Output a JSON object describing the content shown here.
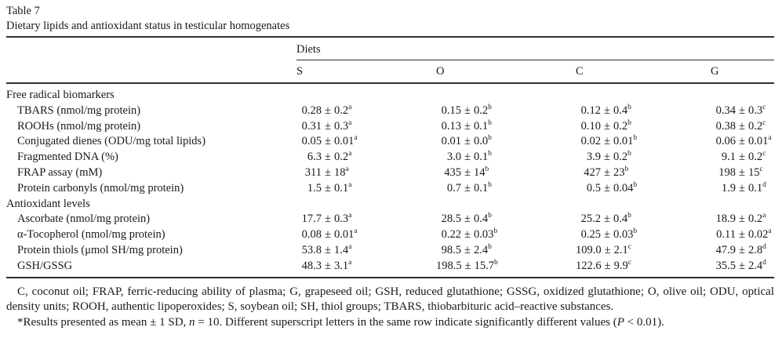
{
  "page": {
    "label": "Table 7",
    "caption": "Dietary lipids and antioxidant status in testicular homogenates"
  },
  "table": {
    "group_header": "Diets",
    "plus_minus": "±",
    "columns": [
      "S",
      "O",
      "C",
      "G"
    ],
    "sections": [
      {
        "title": "Free radical biomarkers",
        "rows": [
          {
            "label": "TBARS (nmol/mg protein)",
            "values": [
              [
                "0.28",
                "0.2",
                "a"
              ],
              [
                "0.15",
                "0.2",
                "b"
              ],
              [
                "0.12",
                "0.4",
                "b"
              ],
              [
                "0.34",
                "0.3",
                "c"
              ]
            ]
          },
          {
            "label": "ROOHs (nmol/mg protein)",
            "values": [
              [
                "0.31",
                "0.3",
                "a"
              ],
              [
                "0.13",
                "0.1",
                "b"
              ],
              [
                "0.10",
                "0.2",
                "b"
              ],
              [
                "0.38",
                "0.2",
                "c"
              ]
            ]
          },
          {
            "label": "Conjugated dienes (ODU/mg total lipids)",
            "values": [
              [
                "0.05",
                "0.01",
                "a"
              ],
              [
                "0.01",
                "0.0",
                "b"
              ],
              [
                "0.02",
                "0.01",
                "b"
              ],
              [
                "0.06",
                "0.01",
                "a"
              ]
            ]
          },
          {
            "label": "Fragmented DNA (%)",
            "values": [
              [
                "6.3",
                "0.2",
                "a"
              ],
              [
                "3.0",
                "0.1",
                "b"
              ],
              [
                "3.9",
                "0.2",
                "b"
              ],
              [
                "9.1",
                "0.2",
                "c"
              ]
            ]
          },
          {
            "label": "FRAP assay (mM)",
            "values": [
              [
                "311",
                "18",
                "a"
              ],
              [
                "435",
                "14",
                "b"
              ],
              [
                "427",
                "23",
                "b"
              ],
              [
                "198",
                "15",
                "c"
              ]
            ]
          },
          {
            "label": "Protein carbonyls (nmol/mg protein)",
            "values": [
              [
                "1.5",
                "0.1",
                "a"
              ],
              [
                "0.7",
                "0.1",
                "b"
              ],
              [
                "0.5",
                "0.04",
                "b"
              ],
              [
                "1.9",
                "0.1",
                "d"
              ]
            ]
          }
        ]
      },
      {
        "title": "Antioxidant levels",
        "rows": [
          {
            "label": "Ascorbate (nmol/mg protein)",
            "values": [
              [
                "17.7",
                "0.3",
                "a"
              ],
              [
                "28.5",
                "0.4",
                "b"
              ],
              [
                "25.2",
                "0.4",
                "b"
              ],
              [
                "18.9",
                "0.2",
                "a"
              ]
            ]
          },
          {
            "label": "α-Tocopherol (nmol/mg protein)",
            "values": [
              [
                "0.08",
                "0.01",
                "a"
              ],
              [
                "0.22",
                "0.03",
                "b"
              ],
              [
                "0.25",
                "0.03",
                "b"
              ],
              [
                "0.11",
                "0.02",
                "a"
              ]
            ]
          },
          {
            "label": "Protein thiols (μmol SH/mg protein)",
            "values": [
              [
                "53.8",
                "1.4",
                "a"
              ],
              [
                "98.5",
                "2.4",
                "b"
              ],
              [
                "109.0",
                "2.1",
                "c"
              ],
              [
                "47.9",
                "2.8",
                "d"
              ]
            ]
          },
          {
            "label": "GSH/GSSG",
            "values": [
              [
                "48.3",
                "3.1",
                "a"
              ],
              [
                "198.5",
                "15.7",
                "b"
              ],
              [
                "122.6",
                "9.9",
                "c"
              ],
              [
                "35.5",
                "2.4",
                "d"
              ]
            ]
          }
        ]
      }
    ]
  },
  "footnotes": {
    "abbreviations": [
      {
        "t": "C, coconut oil; FRAP, ferric-reducing ability of plasma; G, grapeseed oil; GSH, reduced glutathione; GSSG, oxidized glutathione; O, olive oil; ODU, optical density units; ROOH, authentic lipoperoxides; S, soybean oil; SH, thiol groups; TBARS, thiobarbituric acid–reactive substances.",
        "i": false
      }
    ],
    "results_note": [
      {
        "t": "*Results presented as mean ± 1 SD, ",
        "i": false
      },
      {
        "t": "n",
        "i": true
      },
      {
        "t": " = 10. Different superscript letters in the same row indicate significantly different values (",
        "i": false
      },
      {
        "t": "P",
        "i": true
      },
      {
        "t": " < 0.01).",
        "i": false
      }
    ]
  },
  "colors": {
    "text": "#191919",
    "rule": "#2e2e2e",
    "background": "#ffffff"
  }
}
